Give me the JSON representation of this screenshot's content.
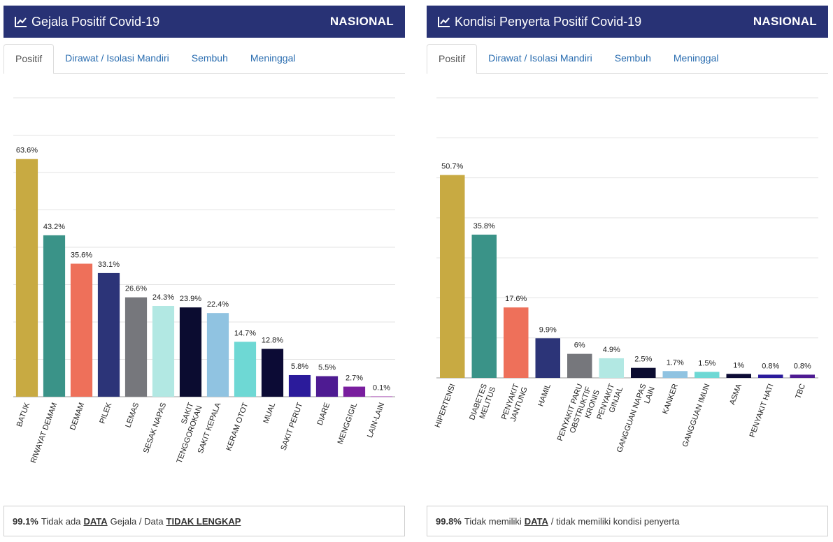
{
  "panels": [
    {
      "title": "Gejala Positif Covid-19",
      "scope": "NASIONAL",
      "tabs": [
        "Positif",
        "Dirawat / Isolasi Mandiri",
        "Sembuh",
        "Meninggal"
      ],
      "active_tab": 0,
      "footer": {
        "pct": "99.1%",
        "t1": "Tidak ada",
        "u1": "DATA",
        "t2": "Gejala / Data",
        "u2": "TIDAK LENGKAP",
        "t3": ""
      }
    },
    {
      "title": "Kondisi Penyerta Positif Covid-19",
      "scope": "NASIONAL",
      "tabs": [
        "Positif",
        "Dirawat / Isolasi Mandiri",
        "Sembuh",
        "Meninggal"
      ],
      "active_tab": 0,
      "footer": {
        "pct": "99.8%",
        "t1": "Tidak memiliki",
        "u1": "DATA",
        "t2": "/ tidak memiliki kondisi penyerta",
        "u2": "",
        "t3": ""
      }
    }
  ],
  "icon": "line-chart-icon",
  "colors": {
    "header_bg": "#283275",
    "tab_link": "#2a6db0",
    "palette": [
      "#c8aa42",
      "#3a9388",
      "#ee705a",
      "#2c3478",
      "#76777c",
      "#b2e8e3",
      "#0b0c30",
      "#90c3e1",
      "#6ed8d4",
      "#0c0b35",
      "#2b1b9b",
      "#4e1b92",
      "#791e9e",
      "#a23cae"
    ]
  },
  "chart_data": [
    {
      "type": "bar",
      "categories": [
        "BATUK",
        "RIWAYAT DEMAM",
        "DEMAM",
        "PILEK",
        "LEMAS",
        "SESAK NAPAS",
        "SAKIT TENGGOROKAN",
        "SAKIT KEPALA",
        "KERAM OTOT",
        "MUAL",
        "SAKIT PERUT",
        "DIARE",
        "MENGGIGIL",
        "LAIN-LAIN"
      ],
      "values": [
        63.6,
        43.2,
        35.6,
        33.1,
        26.6,
        24.3,
        23.9,
        22.4,
        14.7,
        12.8,
        5.8,
        5.5,
        2.7,
        0.1
      ],
      "labels": [
        "63.6%",
        "43.2%",
        "35.6%",
        "33.1%",
        "26.6%",
        "24.3%",
        "23.9%",
        "22.4%",
        "14.7%",
        "12.8%",
        "5.8%",
        "5.5%",
        "2.7%",
        "0.1%"
      ],
      "ylim": [
        0,
        80
      ],
      "grid": true,
      "title": "",
      "xlabel": "",
      "ylabel": ""
    },
    {
      "type": "bar",
      "categories": [
        "HIPERTENSI",
        "DIABETES MELITUS",
        "PENYAKIT JANTUNG",
        "HAMIL",
        "PENYAKIT PARU OBSTRUKTIF KRONIS",
        "PENYAKIT GINJAL",
        "GANGGUAN NAPAS LAIN",
        "KANKER",
        "GANGGUAN IMUN",
        "ASMA",
        "PENYAKIT HATI",
        "TBC"
      ],
      "values": [
        50.7,
        35.8,
        17.6,
        9.9,
        6,
        4.9,
        2.5,
        1.7,
        1.5,
        1,
        0.8,
        0.8
      ],
      "labels": [
        "50.7%",
        "35.8%",
        "17.6%",
        "9.9%",
        "6%",
        "4.9%",
        "2.5%",
        "1.7%",
        "1.5%",
        "1%",
        "0.8%",
        "0.8%"
      ],
      "ylim": [
        0,
        70
      ],
      "grid": true,
      "title": "",
      "xlabel": "",
      "ylabel": ""
    }
  ]
}
